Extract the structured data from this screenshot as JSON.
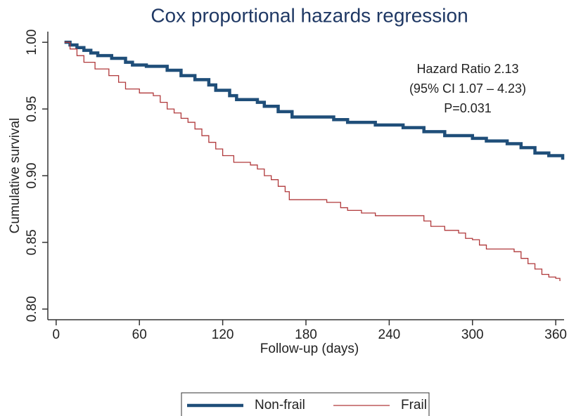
{
  "chart_data": {
    "type": "step",
    "title": "Cox proportional hazards regression",
    "xlabel": "Follow-up (days)",
    "ylabel": "Cumulative survival",
    "annotations": [
      "Hazard Ratio 2.13",
      "(95% CI 1.07 – 4.23)",
      "P=0.031"
    ],
    "xlim": [
      -6,
      366
    ],
    "ylim": [
      0.792,
      1.008
    ],
    "xticks": [
      0,
      60,
      120,
      180,
      240,
      300,
      360
    ],
    "yticks": [
      {
        "value": 0.8,
        "label": "0.80"
      },
      {
        "value": 0.85,
        "label": "0.85"
      },
      {
        "value": 0.9,
        "label": "0.90"
      },
      {
        "value": 0.95,
        "label": "0.95"
      },
      {
        "value": 1.0,
        "label": "1.00"
      }
    ],
    "series": [
      {
        "name": "Non-frail",
        "color": "#1f4e79",
        "x": [
          6,
          10,
          15,
          20,
          25,
          30,
          40,
          50,
          55,
          65,
          80,
          90,
          100,
          110,
          115,
          125,
          130,
          145,
          150,
          160,
          170,
          200,
          210,
          230,
          250,
          265,
          280,
          300,
          310,
          325,
          335,
          345,
          355,
          365
        ],
        "values": [
          1.0,
          0.998,
          0.996,
          0.994,
          0.992,
          0.99,
          0.988,
          0.985,
          0.983,
          0.982,
          0.979,
          0.975,
          0.972,
          0.968,
          0.964,
          0.96,
          0.957,
          0.955,
          0.952,
          0.948,
          0.944,
          0.942,
          0.94,
          0.938,
          0.936,
          0.933,
          0.93,
          0.928,
          0.926,
          0.924,
          0.921,
          0.917,
          0.915,
          0.912
        ]
      },
      {
        "name": "Frail",
        "color": "#b0393b",
        "x": [
          6,
          10,
          15,
          20,
          28,
          38,
          45,
          50,
          60,
          70,
          75,
          80,
          85,
          90,
          95,
          100,
          105,
          110,
          115,
          120,
          128,
          140,
          145,
          150,
          155,
          160,
          165,
          168,
          195,
          205,
          210,
          220,
          230,
          265,
          270,
          280,
          290,
          295,
          300,
          305,
          310,
          320,
          330,
          335,
          340,
          345,
          350,
          355,
          360,
          363
        ],
        "values": [
          1.0,
          0.995,
          0.99,
          0.985,
          0.98,
          0.975,
          0.97,
          0.965,
          0.962,
          0.96,
          0.955,
          0.95,
          0.947,
          0.943,
          0.94,
          0.935,
          0.93,
          0.925,
          0.92,
          0.915,
          0.91,
          0.908,
          0.905,
          0.9,
          0.897,
          0.892,
          0.888,
          0.882,
          0.88,
          0.876,
          0.874,
          0.872,
          0.87,
          0.866,
          0.862,
          0.859,
          0.857,
          0.853,
          0.852,
          0.848,
          0.845,
          0.845,
          0.843,
          0.838,
          0.834,
          0.83,
          0.826,
          0.824,
          0.823,
          0.821
        ]
      }
    ]
  }
}
